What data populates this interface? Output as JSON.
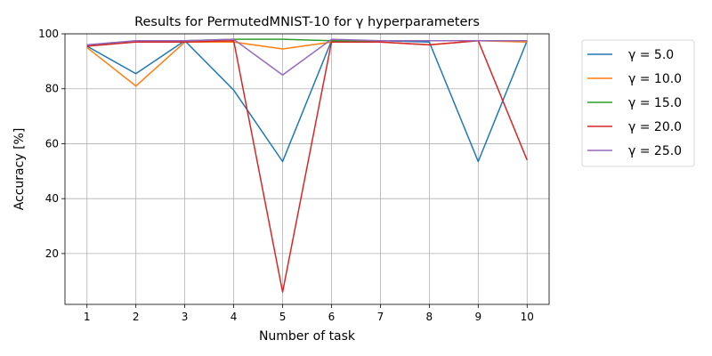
{
  "chart_data": {
    "type": "line",
    "title": "Results for PermutedMNIST-10 for γ hyperparameters",
    "xlabel": "Number of task",
    "ylabel": "Accuracy [%]",
    "x": [
      1,
      2,
      3,
      4,
      5,
      6,
      7,
      8,
      9,
      10
    ],
    "xlim": [
      0.55,
      10.45
    ],
    "ylim": [
      1.5,
      100
    ],
    "yticks": [
      20,
      40,
      60,
      80,
      100
    ],
    "grid": true,
    "legend_position": "outside-right",
    "series": [
      {
        "name": "γ = 5.0",
        "color": "#1f77b4",
        "values": [
          95.5,
          85.5,
          97.5,
          79.5,
          53.5,
          97.5,
          97.5,
          97.0,
          53.5,
          97.5
        ]
      },
      {
        "name": "γ = 10.0",
        "color": "#ff7f0e",
        "values": [
          95.0,
          81.0,
          97.0,
          97.0,
          94.5,
          97.0,
          97.0,
          96.0,
          97.5,
          97.0
        ]
      },
      {
        "name": "γ = 15.0",
        "color": "#2ca02c",
        "values": [
          95.5,
          97.5,
          97.5,
          98.0,
          98.0,
          97.5,
          97.5,
          97.5,
          97.5,
          97.5
        ]
      },
      {
        "name": "γ = 20.0",
        "color": "#d62728",
        "values": [
          95.5,
          97.0,
          97.0,
          97.5,
          6.0,
          97.0,
          97.0,
          96.0,
          97.5,
          54.0
        ]
      },
      {
        "name": "γ = 25.0",
        "color": "#9467bd",
        "values": [
          96.0,
          97.5,
          97.5,
          98.0,
          85.0,
          98.0,
          97.5,
          97.5,
          97.5,
          97.5
        ]
      }
    ]
  }
}
